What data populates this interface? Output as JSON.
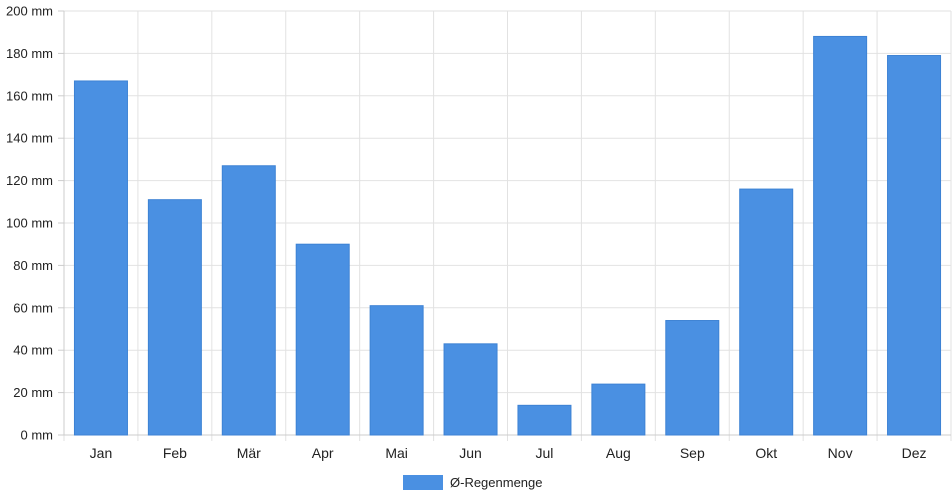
{
  "chart_data": {
    "type": "bar",
    "title": "",
    "xlabel": "",
    "ylabel": "",
    "categories": [
      "Jan",
      "Feb",
      "Mär",
      "Apr",
      "Mai",
      "Jun",
      "Jul",
      "Aug",
      "Sep",
      "Okt",
      "Nov",
      "Dez"
    ],
    "series": [
      {
        "name": "Ø-Regenmenge",
        "color": "#4a90e2",
        "values": [
          167,
          111,
          127,
          90,
          61,
          43,
          14,
          24,
          54,
          116,
          188,
          179
        ]
      }
    ],
    "ylim": [
      0,
      200
    ],
    "yticks": [
      0,
      20,
      40,
      60,
      80,
      100,
      120,
      140,
      160,
      180,
      200
    ],
    "ytick_labels": [
      "0 mm",
      "20 mm",
      "40 mm",
      "60 mm",
      "80 mm",
      "100 mm",
      "120 mm",
      "140 mm",
      "160 mm",
      "180 mm",
      "200 mm"
    ],
    "grid": true,
    "legend_position": "bottom-center"
  }
}
